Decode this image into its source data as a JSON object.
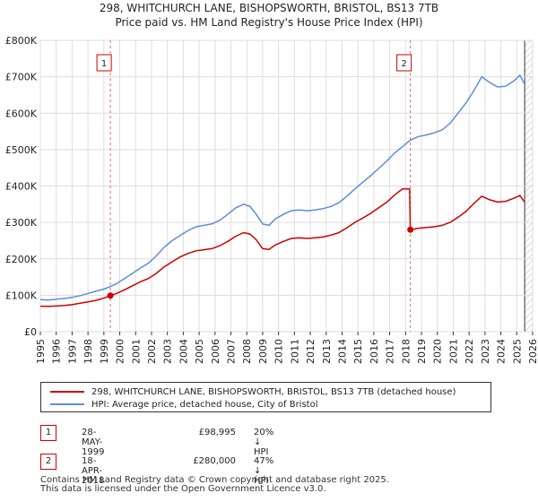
{
  "chart_data": {
    "type": "line",
    "title": "298, WHITCHURCH LANE, BISHOPSWORTH, BRISTOL, BS13 7TB",
    "subtitle": "Price paid vs. HM Land Registry's House Price Index (HPI)",
    "xlim": [
      1995,
      2026
    ],
    "ylim": [
      0,
      800000
    ],
    "x_ticks": [
      "1995",
      "1996",
      "1997",
      "1998",
      "1999",
      "2000",
      "2001",
      "2002",
      "2003",
      "2004",
      "2005",
      "2006",
      "2007",
      "2008",
      "2009",
      "2010",
      "2011",
      "2012",
      "2013",
      "2014",
      "2015",
      "2016",
      "2017",
      "2018",
      "2019",
      "2020",
      "2021",
      "2022",
      "2023",
      "2024",
      "2025",
      "2026"
    ],
    "y_ticks": [
      {
        "value": 0,
        "label": "£0"
      },
      {
        "value": 100000,
        "label": "£100K"
      },
      {
        "value": 200000,
        "label": "£200K"
      },
      {
        "value": 300000,
        "label": "£300K"
      },
      {
        "value": 400000,
        "label": "£400K"
      },
      {
        "value": 500000,
        "label": "£500K"
      },
      {
        "value": 600000,
        "label": "£600K"
      },
      {
        "value": 700000,
        "label": "£700K"
      },
      {
        "value": 800000,
        "label": "£800K"
      }
    ],
    "series": [
      {
        "name": "298, WHITCHURCH LANE, BISHOPSWORTH, BRISTOL, BS13 7TB (detached house)",
        "color": "#cc0000",
        "points": [
          [
            1995.0,
            70000
          ],
          [
            1995.5,
            69500
          ],
          [
            1996.0,
            70500
          ],
          [
            1996.5,
            72000
          ],
          [
            1997.0,
            74000
          ],
          [
            1997.5,
            78000
          ],
          [
            1998.0,
            82000
          ],
          [
            1998.5,
            86000
          ],
          [
            1999.0,
            92000
          ],
          [
            1999.41,
            98995
          ],
          [
            1999.8,
            105000
          ],
          [
            2000.3,
            115000
          ],
          [
            2000.8,
            126000
          ],
          [
            2001.3,
            137000
          ],
          [
            2001.8,
            146000
          ],
          [
            2002.3,
            160000
          ],
          [
            2002.8,
            178000
          ],
          [
            2003.3,
            192000
          ],
          [
            2003.8,
            205000
          ],
          [
            2004.3,
            215000
          ],
          [
            2004.8,
            222000
          ],
          [
            2005.3,
            225000
          ],
          [
            2005.8,
            228000
          ],
          [
            2006.3,
            236000
          ],
          [
            2006.8,
            248000
          ],
          [
            2007.3,
            262000
          ],
          [
            2007.8,
            272000
          ],
          [
            2008.2,
            268000
          ],
          [
            2008.6,
            252000
          ],
          [
            2009.0,
            228000
          ],
          [
            2009.4,
            226000
          ],
          [
            2009.8,
            238000
          ],
          [
            2010.3,
            248000
          ],
          [
            2010.8,
            256000
          ],
          [
            2011.3,
            258000
          ],
          [
            2011.8,
            256000
          ],
          [
            2012.3,
            258000
          ],
          [
            2012.8,
            260000
          ],
          [
            2013.3,
            265000
          ],
          [
            2013.8,
            272000
          ],
          [
            2014.3,
            285000
          ],
          [
            2014.8,
            300000
          ],
          [
            2015.3,
            312000
          ],
          [
            2015.8,
            325000
          ],
          [
            2016.3,
            340000
          ],
          [
            2016.8,
            355000
          ],
          [
            2017.3,
            375000
          ],
          [
            2017.8,
            392000
          ],
          [
            2018.25,
            392000
          ],
          [
            2018.3,
            280000
          ],
          [
            2018.8,
            284000
          ],
          [
            2019.3,
            286000
          ],
          [
            2019.8,
            288000
          ],
          [
            2020.3,
            292000
          ],
          [
            2020.8,
            300000
          ],
          [
            2021.3,
            314000
          ],
          [
            2021.8,
            330000
          ],
          [
            2022.3,
            352000
          ],
          [
            2022.8,
            372000
          ],
          [
            2023.3,
            362000
          ],
          [
            2023.8,
            356000
          ],
          [
            2024.3,
            358000
          ],
          [
            2024.8,
            366000
          ],
          [
            2025.2,
            374000
          ],
          [
            2025.5,
            356000
          ]
        ]
      },
      {
        "name": "HPI: Average price, detached house, City of Bristol",
        "color": "#5b8ed6",
        "points": [
          [
            1995.0,
            88000
          ],
          [
            1995.5,
            87000
          ],
          [
            1996.0,
            89000
          ],
          [
            1996.5,
            91000
          ],
          [
            1997.0,
            94000
          ],
          [
            1997.5,
            99000
          ],
          [
            1998.0,
            105000
          ],
          [
            1998.5,
            111000
          ],
          [
            1999.0,
            117000
          ],
          [
            1999.41,
            123700
          ],
          [
            1999.8,
            132000
          ],
          [
            2000.3,
            146000
          ],
          [
            2000.8,
            160000
          ],
          [
            2001.3,
            175000
          ],
          [
            2001.8,
            188000
          ],
          [
            2002.3,
            208000
          ],
          [
            2002.8,
            232000
          ],
          [
            2003.3,
            250000
          ],
          [
            2003.8,
            264000
          ],
          [
            2004.3,
            278000
          ],
          [
            2004.8,
            288000
          ],
          [
            2005.3,
            292000
          ],
          [
            2005.8,
            296000
          ],
          [
            2006.3,
            306000
          ],
          [
            2006.8,
            322000
          ],
          [
            2007.3,
            340000
          ],
          [
            2007.8,
            350000
          ],
          [
            2008.2,
            344000
          ],
          [
            2008.6,
            322000
          ],
          [
            2009.0,
            296000
          ],
          [
            2009.4,
            292000
          ],
          [
            2009.8,
            310000
          ],
          [
            2010.3,
            322000
          ],
          [
            2010.8,
            332000
          ],
          [
            2011.3,
            334000
          ],
          [
            2011.8,
            332000
          ],
          [
            2012.3,
            334000
          ],
          [
            2012.8,
            338000
          ],
          [
            2013.3,
            344000
          ],
          [
            2013.8,
            354000
          ],
          [
            2014.3,
            372000
          ],
          [
            2014.8,
            392000
          ],
          [
            2015.3,
            410000
          ],
          [
            2015.8,
            428000
          ],
          [
            2016.3,
            448000
          ],
          [
            2016.8,
            468000
          ],
          [
            2017.3,
            490000
          ],
          [
            2017.8,
            508000
          ],
          [
            2018.3,
            526000
          ],
          [
            2018.8,
            536000
          ],
          [
            2019.3,
            540000
          ],
          [
            2019.8,
            546000
          ],
          [
            2020.3,
            554000
          ],
          [
            2020.8,
            572000
          ],
          [
            2021.3,
            600000
          ],
          [
            2021.8,
            628000
          ],
          [
            2022.3,
            662000
          ],
          [
            2022.8,
            700000
          ],
          [
            2023.3,
            684000
          ],
          [
            2023.8,
            672000
          ],
          [
            2024.3,
            674000
          ],
          [
            2024.8,
            688000
          ],
          [
            2025.2,
            704000
          ],
          [
            2025.5,
            680000
          ]
        ]
      }
    ],
    "markers": [
      {
        "label": "1",
        "x": 1999.41,
        "value": 98995
      },
      {
        "label": "2",
        "x": 2018.3,
        "value": 280000
      }
    ],
    "grid": true,
    "legend_position": "bottom"
  },
  "legend": {
    "items": [
      {
        "label": "298, WHITCHURCH LANE, BISHOPSWORTH, BRISTOL, BS13 7TB (detached house)",
        "color": "#cc0000"
      },
      {
        "label": "HPI: Average price, detached house, City of Bristol",
        "color": "#5b8ed6"
      }
    ]
  },
  "sales": [
    {
      "num": "1",
      "date": "28-MAY-1999",
      "price": "£98,995",
      "hpi": "20% ↓ HPI"
    },
    {
      "num": "2",
      "date": "18-APR-2018",
      "price": "£280,000",
      "hpi": "47% ↓ HPI"
    }
  ],
  "footer": {
    "line1": "Contains HM Land Registry data © Crown copyright and database right 2025.",
    "line2": "This data is licensed under the Open Government Licence v3.0."
  }
}
